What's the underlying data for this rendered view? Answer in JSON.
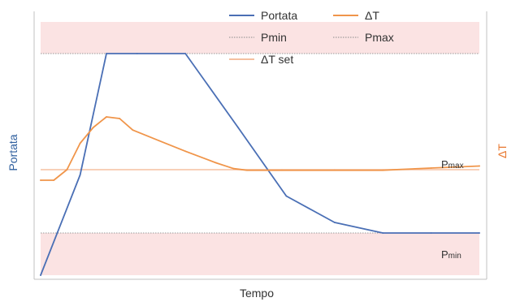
{
  "chart_data": {
    "type": "line",
    "title": "",
    "xlabel": "Tempo",
    "ylabel_left": "Portata",
    "ylabel_right": "ΔT",
    "series": [
      {
        "name": "Portata",
        "color": "#4a6fb5",
        "x": [
          0,
          9,
          15,
          22,
          33,
          45,
          56,
          67,
          78,
          89,
          100
        ],
        "y": [
          0,
          19,
          42,
          42,
          42,
          28,
          15,
          10,
          8,
          8,
          8
        ]
      },
      {
        "name": "ΔT",
        "color": "#f0954a",
        "x": [
          0,
          3,
          6,
          9,
          12,
          15,
          18,
          21,
          27,
          33,
          40,
          44,
          47,
          55,
          67,
          78,
          89,
          100
        ],
        "y": [
          18,
          18,
          20,
          25,
          28,
          30,
          29.7,
          27.5,
          25.5,
          23.5,
          21.3,
          20.2,
          19.9,
          19.9,
          19.9,
          19.9,
          20.3,
          20.7
        ]
      }
    ],
    "reference_lines": [
      {
        "name": "Pmin",
        "color": "#999999",
        "style": "dotted",
        "value": 8
      },
      {
        "name": "Pmax",
        "color": "#999999",
        "style": "dotted",
        "value": 42
      },
      {
        "name": "ΔT set",
        "color": "#f5c0a0",
        "style": "solid",
        "value": 20
      }
    ],
    "bands": [
      {
        "label": "Pmax",
        "from": 42,
        "to": 48,
        "color": "#fbe3e3"
      },
      {
        "label": "Pmin",
        "from": 0,
        "to": 8,
        "color": "#fbe3e3"
      }
    ],
    "legend": [
      {
        "label": "Portata",
        "color": "#4a6fb5",
        "style": "solid"
      },
      {
        "label": "ΔT",
        "color": "#f0954a",
        "style": "solid"
      },
      {
        "label": "Pmin",
        "color": "#888888",
        "style": "dotted"
      },
      {
        "label": "Pmax",
        "color": "#888888",
        "style": "dotted"
      },
      {
        "label": "ΔT set",
        "color": "#f5c0a0",
        "style": "solid"
      }
    ],
    "legend_position": "top",
    "grid": false
  }
}
